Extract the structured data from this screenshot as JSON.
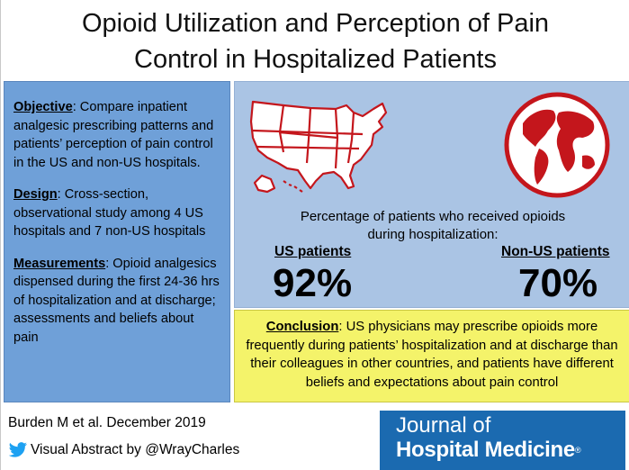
{
  "title": {
    "line1": "Opioid Utilization and Perception of Pain",
    "line2": "Control in Hospitalized Patients"
  },
  "left": {
    "objective_heading": "Objective",
    "objective_text": ": Compare inpatient analgesic prescribing patterns and patients’ perception of pain control in the US and non-US hospitals.",
    "design_heading": "Design",
    "design_text": ": Cross-section, observational study among 4 US hospitals and 7 non-US hospitals",
    "measurements_heading": "Measurements",
    "measurements_text": ": Opioid analgesics dispensed during the first 24-36 hrs of hospitalization and at discharge; assessments and beliefs about pain"
  },
  "results": {
    "caption_line1": "Percentage of patients who received opioids",
    "caption_line2": "during hospitalization:",
    "us_label": "US patients",
    "us_value": "92%",
    "nonus_label": "Non-US patients",
    "nonus_value": "70%"
  },
  "conclusion": {
    "heading": "Conclusion",
    "text": ": US physicians may prescribe opioids more frequently during patients’ hospitalization and at discharge than their colleagues in other countries, and patients have different beliefs and expectations about pain control"
  },
  "footer": {
    "citation": "Burden M et al. December 2019",
    "credit": "Visual Abstract by @WrayCharles"
  },
  "journal": {
    "line1": "Journal of",
    "line2": "Hospital Medicine",
    "mark": "®"
  },
  "colors": {
    "left_panel": "#6fa0d8",
    "right_panel": "#aac4e4",
    "conclusion": "#f4f36a",
    "accent_red": "#c4161c",
    "journal_blue": "#1b6ab0",
    "twitter_blue": "#1da1f2"
  },
  "icons": [
    "us-map-icon",
    "globe-icon",
    "twitter-icon"
  ]
}
